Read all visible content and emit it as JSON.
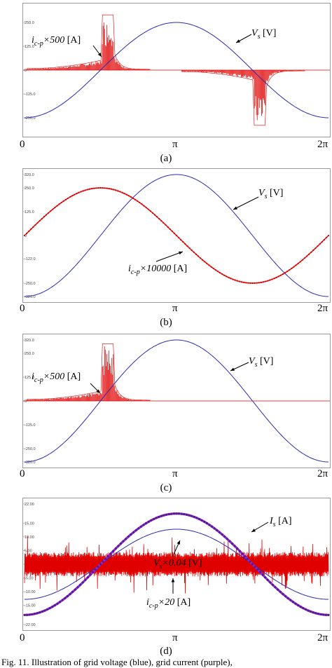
{
  "panels": [
    {
      "caption": "(a)",
      "xticks": [
        "0",
        "π",
        "2π"
      ],
      "yticks": [
        "250.0",
        "125.0",
        "0",
        "-125.0",
        "-250.0"
      ],
      "labels": {
        "current": "i_{c-p}×500 [A]",
        "voltage": "V_s [V]"
      }
    },
    {
      "caption": "(b)",
      "xticks": [
        "0",
        "π",
        "2π"
      ],
      "yticks": [
        "320.0",
        "250.0",
        "125.0",
        "0",
        "-122.0",
        "-250.0",
        "-320.0"
      ],
      "labels": {
        "current": "i_{c-p}×10000 [A]",
        "voltage": "V_s [V]"
      }
    },
    {
      "caption": "(c)",
      "xticks": [
        "0",
        "π",
        "2π"
      ],
      "yticks": [
        "320.0",
        "250.0",
        "125.0",
        "0",
        "-125.0",
        "-250.0",
        "-320.0"
      ],
      "labels": {
        "current": "i_{c-p}×500 [A]",
        "voltage": "V_s [V]"
      }
    },
    {
      "caption": "(d)",
      "xticks": [
        "0",
        "π",
        "2π"
      ],
      "yticks": [
        "22.00",
        "15.00",
        "10.00",
        "5.00",
        "0",
        "-5.00",
        "-10.00",
        "-15.00",
        "-22.00"
      ],
      "labels": {
        "is": "I_s [A]",
        "vs": "V_s×0.04 [V]",
        "current": "i_{c-p}×20 [A]"
      }
    }
  ],
  "figure_caption": "Fig. 11. Illustration of grid voltage (blue), grid current (purple),",
  "chart_data": [
    {
      "type": "line",
      "x": [
        0,
        0.785,
        1.571,
        2.356,
        3.142,
        3.927,
        4.712,
        5.498,
        6.283
      ],
      "ylim": [
        -320,
        320
      ],
      "series": [
        {
          "name": "V_s [V]",
          "color": "#2b2bb5",
          "values": [
            -250,
            -176.8,
            0,
            176.8,
            250,
            176.8,
            0,
            -176.8,
            -250
          ]
        },
        {
          "name": "i_{c-p}×500 [A]",
          "color": "#e00000",
          "values": [
            0,
            20,
            40,
            60,
            0,
            -20,
            -40,
            -60,
            0
          ],
          "peak": 290
        }
      ]
    },
    {
      "type": "line",
      "x": [
        0,
        0.785,
        1.571,
        2.356,
        3.142,
        3.927,
        4.712,
        5.498,
        6.283
      ],
      "ylim": [
        -320,
        320
      ],
      "series": [
        {
          "name": "V_s [V]",
          "color": "#2b2bb5",
          "values": [
            -320,
            -226.3,
            0,
            226.3,
            320,
            226.3,
            0,
            -226.3,
            -320
          ]
        },
        {
          "name": "i_{c-p}×10000 [A]",
          "color": "#e00000",
          "values": [
            0,
            176.8,
            250,
            176.8,
            0,
            -176.8,
            -250,
            -176.8,
            0
          ]
        }
      ]
    },
    {
      "type": "line",
      "x": [
        0,
        0.785,
        1.571,
        2.356,
        3.142,
        3.927,
        4.712,
        5.498,
        6.283
      ],
      "ylim": [
        -320,
        320
      ],
      "series": [
        {
          "name": "V_s [V]",
          "color": "#2b2bb5",
          "values": [
            -320,
            -226.3,
            0,
            226.3,
            320,
            226.3,
            0,
            -226.3,
            -320
          ]
        },
        {
          "name": "i_{c-p}×500 [A]",
          "color": "#e00000",
          "values": [
            0,
            20,
            40,
            60,
            0,
            0,
            0,
            0,
            0
          ],
          "peak": 300
        }
      ]
    },
    {
      "type": "line",
      "x": [
        0,
        0.785,
        1.571,
        2.356,
        3.142,
        3.927,
        4.712,
        5.498,
        6.283
      ],
      "ylim": [
        -22,
        22
      ],
      "series": [
        {
          "name": "I_s [A]",
          "color": "#8a2be2",
          "values": [
            -18.5,
            -13.1,
            0,
            13.1,
            18.5,
            13.1,
            0,
            -13.1,
            -18.5
          ]
        },
        {
          "name": "V_s×0.04 [V]",
          "color": "#2b2bb5",
          "values": [
            -12.8,
            -9.1,
            0,
            9.1,
            12.8,
            9.1,
            0,
            -9.1,
            -12.8
          ]
        },
        {
          "name": "i_{c-p}×20 [A]",
          "color": "#e00000",
          "values": [
            0,
            0,
            0,
            0,
            0,
            0,
            0,
            0,
            0
          ],
          "amplitude": 4.5
        }
      ]
    }
  ]
}
